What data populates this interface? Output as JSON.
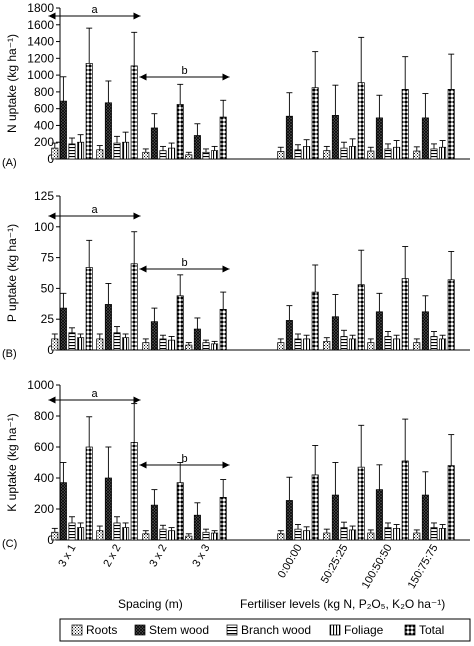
{
  "chart_data": [
    {
      "type": "bar",
      "panel_label": "(A)",
      "ylabel": "N uptake (kg ha⁻¹)",
      "ylim": [
        0,
        1800
      ],
      "yticks": [
        0,
        200,
        400,
        600,
        800,
        1000,
        1200,
        1400,
        1600,
        1800
      ],
      "categories": [
        "3 x 1",
        "2 x 2",
        "3 x 2",
        "3 x 3",
        "0:00:00",
        "50:25:25",
        "100:50:50",
        "150:75:75"
      ],
      "series": [
        {
          "name": "Roots",
          "values": [
            130,
            110,
            80,
            50,
            90,
            100,
            95,
            95
          ],
          "errors": [
            60,
            50,
            40,
            30,
            50,
            50,
            45,
            50
          ]
        },
        {
          "name": "Stem wood",
          "values": [
            690,
            670,
            370,
            280,
            510,
            520,
            490,
            490
          ],
          "errors": [
            290,
            260,
            170,
            140,
            280,
            360,
            270,
            290
          ]
        },
        {
          "name": "Branch wood",
          "values": [
            180,
            190,
            100,
            80,
            110,
            130,
            120,
            120
          ],
          "errors": [
            70,
            80,
            50,
            40,
            60,
            70,
            60,
            60
          ]
        },
        {
          "name": "Foliage",
          "values": [
            200,
            200,
            130,
            100,
            150,
            150,
            140,
            140
          ],
          "errors": [
            90,
            120,
            60,
            50,
            80,
            90,
            80,
            80
          ]
        },
        {
          "name": "Total",
          "values": [
            1140,
            1110,
            650,
            500,
            850,
            910,
            830,
            830
          ],
          "errors": [
            420,
            400,
            240,
            200,
            430,
            540,
            390,
            420
          ]
        }
      ],
      "annotations": [
        {
          "label": "a",
          "from": "3 x 1",
          "to": "2 x 2"
        },
        {
          "label": "b",
          "from": "3 x 2",
          "to": "3 x 3"
        }
      ]
    },
    {
      "type": "bar",
      "panel_label": "(B)",
      "ylabel": "P uptake (kg ha⁻¹)",
      "ylim": [
        0,
        125
      ],
      "yticks": [
        0,
        25,
        50,
        75,
        100,
        125
      ],
      "categories": [
        "3 x 1",
        "2 x 2",
        "3 x 2",
        "3 x 3",
        "0:00:00",
        "50:25:25",
        "100:50:50",
        "150:75:75"
      ],
      "series": [
        {
          "name": "Roots",
          "values": [
            9,
            9,
            6,
            4,
            6,
            7,
            6,
            6
          ],
          "errors": [
            4,
            4,
            3,
            2,
            3,
            3,
            3,
            3
          ]
        },
        {
          "name": "Stem wood",
          "values": [
            34,
            37,
            23,
            17,
            24,
            27,
            31,
            31
          ],
          "errors": [
            12,
            17,
            11,
            9,
            12,
            18,
            15,
            13
          ]
        },
        {
          "name": "Branch wood",
          "values": [
            14,
            14,
            9,
            6,
            9,
            11,
            11,
            11
          ],
          "errors": [
            4,
            5,
            3,
            2,
            4,
            5,
            4,
            4
          ]
        },
        {
          "name": "Foliage",
          "values": [
            10,
            10,
            8,
            5,
            9,
            9,
            9,
            9
          ],
          "errors": [
            3,
            3,
            3,
            2,
            3,
            3,
            3,
            3
          ]
        },
        {
          "name": "Total",
          "values": [
            67,
            70,
            44,
            33,
            47,
            53,
            58,
            57
          ],
          "errors": [
            22,
            26,
            17,
            14,
            22,
            28,
            26,
            23
          ]
        }
      ],
      "annotations": [
        {
          "label": "a",
          "from": "3 x 1",
          "to": "2 x 2"
        },
        {
          "label": "b",
          "from": "3 x 2",
          "to": "3 x 3"
        }
      ]
    },
    {
      "type": "bar",
      "panel_label": "(C)",
      "ylabel": "K uptake (kg ha⁻¹)",
      "ylim": [
        0,
        1000
      ],
      "yticks": [
        0,
        200,
        400,
        600,
        800,
        1000
      ],
      "categories": [
        "3 x 1",
        "2 x 2",
        "3 x 2",
        "3 x 3",
        "0:00:00",
        "50:25:25",
        "100:50:50",
        "150:75:75"
      ],
      "series": [
        {
          "name": "Roots",
          "values": [
            50,
            60,
            40,
            25,
            40,
            45,
            45,
            45
          ],
          "errors": [
            25,
            30,
            20,
            15,
            20,
            25,
            20,
            20
          ]
        },
        {
          "name": "Stem wood",
          "values": [
            370,
            400,
            225,
            160,
            255,
            290,
            325,
            290
          ],
          "errors": [
            130,
            200,
            100,
            80,
            150,
            210,
            160,
            150
          ]
        },
        {
          "name": "Branch wood",
          "values": [
            110,
            110,
            70,
            50,
            70,
            80,
            80,
            80
          ],
          "errors": [
            40,
            40,
            25,
            20,
            30,
            35,
            30,
            30
          ]
        },
        {
          "name": "Foliage",
          "values": [
            80,
            80,
            60,
            45,
            60,
            65,
            75,
            75
          ],
          "errors": [
            30,
            30,
            20,
            15,
            25,
            25,
            25,
            25
          ]
        },
        {
          "name": "Total",
          "values": [
            600,
            630,
            370,
            275,
            420,
            470,
            510,
            480
          ],
          "errors": [
            195,
            250,
            130,
            115,
            190,
            270,
            270,
            200
          ]
        }
      ],
      "annotations": [
        {
          "label": "a",
          "from": "3 x 1",
          "to": "2 x 2"
        },
        {
          "label": "b",
          "from": "3 x 2",
          "to": "3 x 3"
        }
      ]
    }
  ],
  "xgroup_labels": {
    "spacing": "Spacing (m)",
    "fertiliser": "Fertiliser levels (kg N, P₂O₅, K₂O ha⁻¹)"
  },
  "legend": [
    "Roots",
    "Stem wood",
    "Branch wood",
    "Foliage",
    "Total"
  ],
  "colors": {
    "axis": "#000000",
    "bar_fill": "#ffffff",
    "ink": "#000000"
  }
}
